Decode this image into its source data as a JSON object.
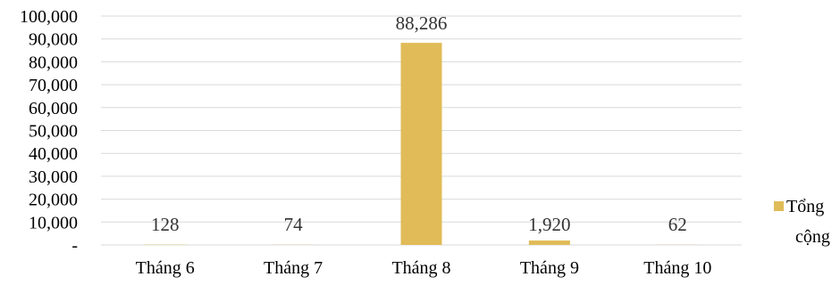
{
  "chart_data": {
    "type": "bar",
    "categories": [
      "Tháng 6",
      "Tháng 7",
      "Tháng 8",
      "Tháng 9",
      "Tháng 10"
    ],
    "series": [
      {
        "name": "Tổng cộng",
        "values": [
          128,
          74,
          88286,
          1920,
          62
        ],
        "data_labels": [
          "128",
          "74",
          "88,286",
          "1,920",
          "62"
        ],
        "color": "#E0BB58"
      }
    ],
    "yticks": [
      0,
      10000,
      20000,
      30000,
      40000,
      50000,
      60000,
      70000,
      80000,
      90000,
      100000
    ],
    "ytick_labels": [
      "-",
      "10,000",
      "20,000",
      "30,000",
      "40,000",
      "50,000",
      "60,000",
      "70,000",
      "80,000",
      "90,000",
      "100,000"
    ],
    "ylim": [
      0,
      100000
    ],
    "title": "",
    "xlabel": "",
    "ylabel": "",
    "grid": true,
    "legend": {
      "position": "right",
      "lines": [
        "Tổng",
        "cộng"
      ]
    }
  }
}
